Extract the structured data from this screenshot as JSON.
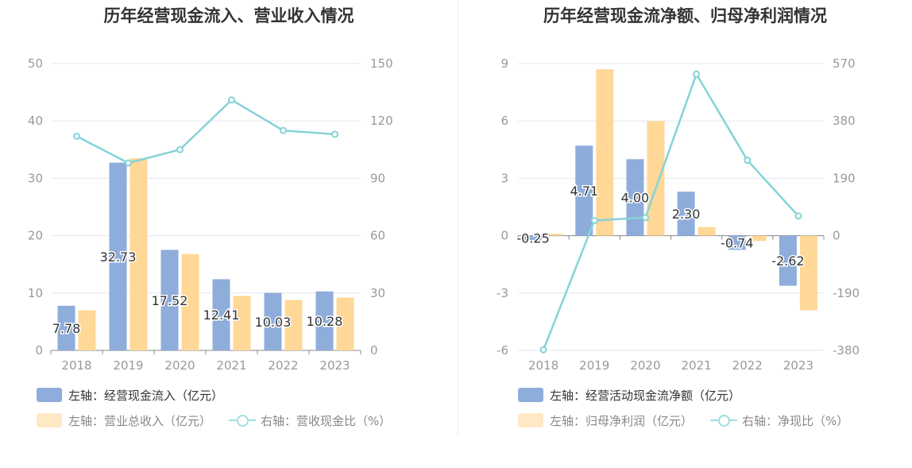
{
  "colors": {
    "bar_primary": "#8eaddb",
    "bar_secondary": "#ffd898",
    "line": "#85d3d6",
    "grid": "#e3e7f3",
    "axis_text": "#999999",
    "label_text": "#333333",
    "legend_secondary_swatch": "#ffe8c4"
  },
  "chart_data": [
    {
      "type": "bar",
      "title": "历年经营现金流入、营业收入情况",
      "categories": [
        "2018",
        "2019",
        "2020",
        "2021",
        "2022",
        "2023"
      ],
      "left_axis": {
        "ylim": [
          0,
          50
        ],
        "ticks": [
          "0",
          "10",
          "20",
          "30",
          "40",
          "50"
        ]
      },
      "right_axis": {
        "ylim": [
          0,
          150
        ],
        "ticks": [
          "0",
          "30",
          "60",
          "90",
          "120",
          "150"
        ]
      },
      "series": [
        {
          "name": "左轴：经营现金流入（亿元）",
          "axis": "left",
          "type": "bar",
          "values": [
            7.78,
            32.73,
            17.52,
            12.41,
            10.03,
            10.28
          ],
          "labels": [
            "7.78",
            "32.73",
            "17.52",
            "12.41",
            "10.03",
            "10.28"
          ]
        },
        {
          "name": "左轴：营业总收入（亿元）",
          "axis": "left",
          "type": "bar",
          "values": [
            7.0,
            33.5,
            16.8,
            9.5,
            8.8,
            9.2
          ]
        },
        {
          "name": "右轴：营收现金比（%）",
          "axis": "right",
          "type": "line",
          "values": [
            112,
            98,
            105,
            131,
            115,
            113
          ]
        }
      ],
      "grid": true,
      "legend": "bottom"
    },
    {
      "type": "bar",
      "title": "历年经营现金流净额、归母净利润情况",
      "categories": [
        "2018",
        "2019",
        "2020",
        "2021",
        "2022",
        "2023"
      ],
      "left_axis": {
        "ylim": [
          -6,
          9
        ],
        "ticks": [
          "-6",
          "-3",
          "0",
          "3",
          "6",
          "9"
        ]
      },
      "right_axis": {
        "ylim": [
          -380,
          570
        ],
        "ticks": [
          "-380",
          "-190",
          "0",
          "190",
          "380",
          "570"
        ]
      },
      "series": [
        {
          "name": "左轴：经营活动现金流净额（亿元）",
          "axis": "left",
          "type": "bar",
          "values": [
            -0.25,
            4.71,
            4.0,
            2.3,
            -0.74,
            -2.62
          ],
          "labels": [
            "-0.25",
            "4.71",
            "4.00",
            "2.30",
            "-0.74",
            "-2.62"
          ]
        },
        {
          "name": "左轴：归母净利润（亿元）",
          "axis": "left",
          "type": "bar",
          "values": [
            0.1,
            8.7,
            6.0,
            0.45,
            -0.28,
            -3.9
          ]
        },
        {
          "name": "右轴：净现比（%）",
          "axis": "right",
          "type": "line",
          "values": [
            -378,
            50,
            60,
            535,
            250,
            65
          ]
        }
      ],
      "grid": true,
      "legend": "bottom"
    }
  ]
}
